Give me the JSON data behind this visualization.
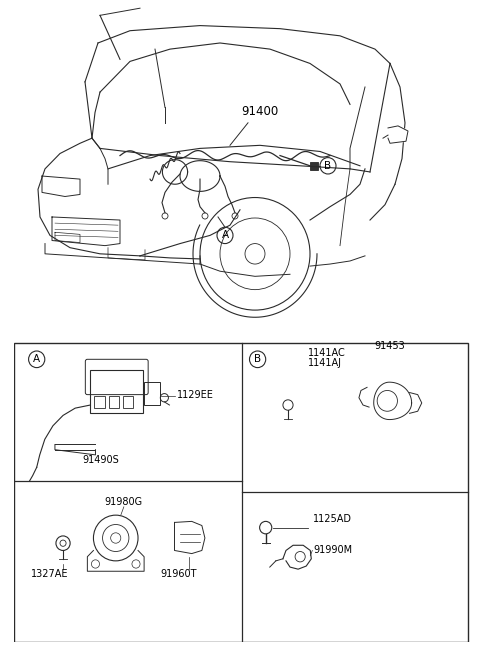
{
  "bg_color": "#ffffff",
  "line_color": "#2a2a2a",
  "text_color": "#000000",
  "fig_width": 4.8,
  "fig_height": 6.55,
  "dpi": 100,
  "main_label": "91400",
  "boxA_parts": [
    "91490S",
    "1129EE"
  ],
  "boxB_top_parts": [
    "1141AC",
    "1141AJ",
    "91453"
  ],
  "boxB_bot_parts": [
    "1125AD",
    "91990M"
  ],
  "boxC_parts": [
    "91980G",
    "1327AE",
    "91960T"
  ]
}
